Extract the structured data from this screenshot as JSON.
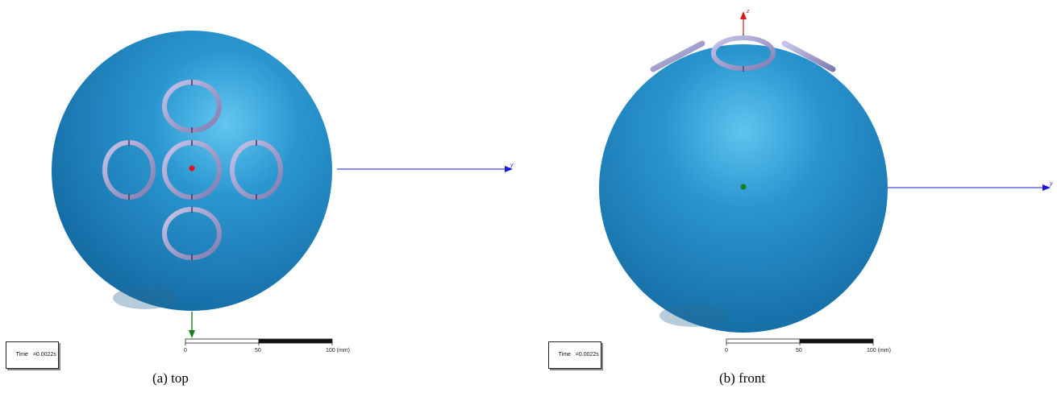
{
  "panels": [
    {
      "id": "top",
      "time_label": "Time",
      "time_value": "=0.0022s",
      "scale": {
        "ticks": [
          "0",
          "50",
          "100 (mm)"
        ]
      },
      "axis_y_label": "y",
      "caption": "(a) top"
    },
    {
      "id": "front",
      "time_label": "Time",
      "time_value": "=0.0022s",
      "scale": {
        "ticks": [
          "0",
          "50",
          "100 (mm)"
        ]
      },
      "axis_y_label": "y",
      "axis_z_label": "z",
      "caption": "(b) front"
    }
  ],
  "colors": {
    "sphere": "#1e7fbf",
    "sphere_highlight": "#5cc0ee",
    "ring": "#9a96c8",
    "axis_y": "#1a1adc",
    "axis_z": "#d81c1c",
    "axis_x": "#1b7d1b"
  }
}
